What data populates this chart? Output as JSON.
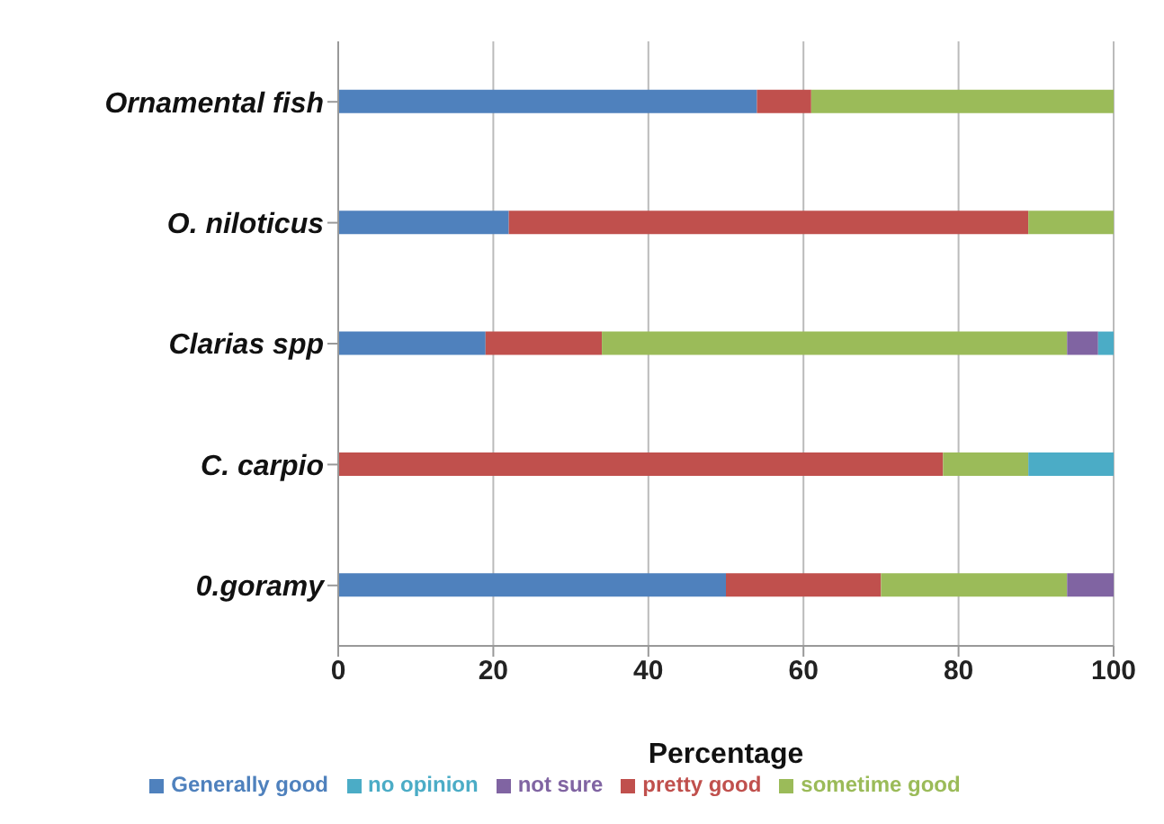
{
  "chart_data": {
    "type": "bar",
    "orientation": "horizontal",
    "stacked": true,
    "xlabel": "Percentage",
    "categories": [
      "Ornamental fish",
      "O. niloticus",
      "Clarias spp",
      "C. carpio",
      "0.goramy"
    ],
    "series": [
      {
        "name": "Generally good",
        "color": "#4f81bd",
        "values": [
          54,
          22,
          19,
          0,
          50
        ]
      },
      {
        "name": "pretty good",
        "color": "#c0504d",
        "values": [
          7,
          67,
          15,
          78,
          20
        ]
      },
      {
        "name": "sometime good",
        "color": "#9bbb59",
        "values": [
          39,
          11,
          60,
          11,
          24
        ]
      },
      {
        "name": "not sure",
        "color": "#8064a2",
        "values": [
          0,
          0,
          4,
          0,
          6
        ]
      },
      {
        "name": "no opinion",
        "color": "#4bacc6",
        "values": [
          0,
          0,
          2,
          11,
          0
        ]
      }
    ],
    "xlim": [
      0,
      100
    ],
    "xticks": [
      0,
      20,
      40,
      60,
      80,
      100
    ],
    "grid": "x",
    "legend": "bottom"
  }
}
